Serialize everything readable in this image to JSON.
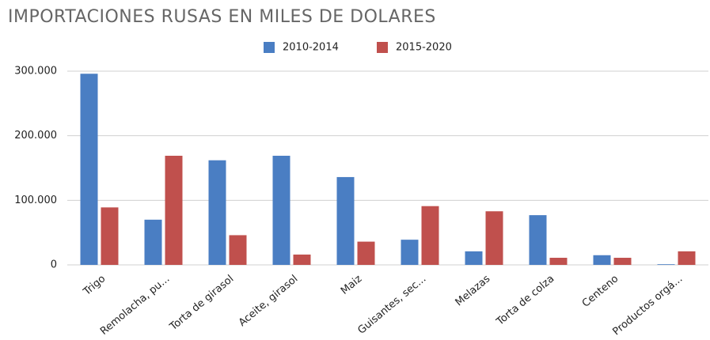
{
  "chart_data": {
    "type": "bar",
    "title": "IMPORTACIONES RUSAS EN MILES DE DOLARES",
    "categories": [
      "Trigo",
      "Remolacha, pu...",
      "Torta de girasol",
      "Aceite, girasol",
      "Maiz",
      "Guisantes, sec...",
      "Melazas",
      "Torta de colza",
      "Centeno",
      "Productos orgá..."
    ],
    "series": [
      {
        "name": "2010-2014",
        "color": "#4a7ec3",
        "values": [
          296000,
          70000,
          162000,
          169000,
          136000,
          39000,
          21000,
          77000,
          15000,
          1000
        ]
      },
      {
        "name": "2015-2020",
        "color": "#c0504d",
        "values": [
          89000,
          169000,
          46000,
          16000,
          36000,
          91000,
          83000,
          11000,
          11000,
          21000
        ]
      }
    ],
    "ylim": [
      0,
      300000
    ],
    "yticks": [
      0,
      {
        "value": 100000,
        "label": "100.000"
      },
      {
        "value": 200000,
        "label": "200.000"
      },
      {
        "value": 300000,
        "label": "300.000"
      }
    ],
    "grid": true,
    "legend": "top"
  }
}
